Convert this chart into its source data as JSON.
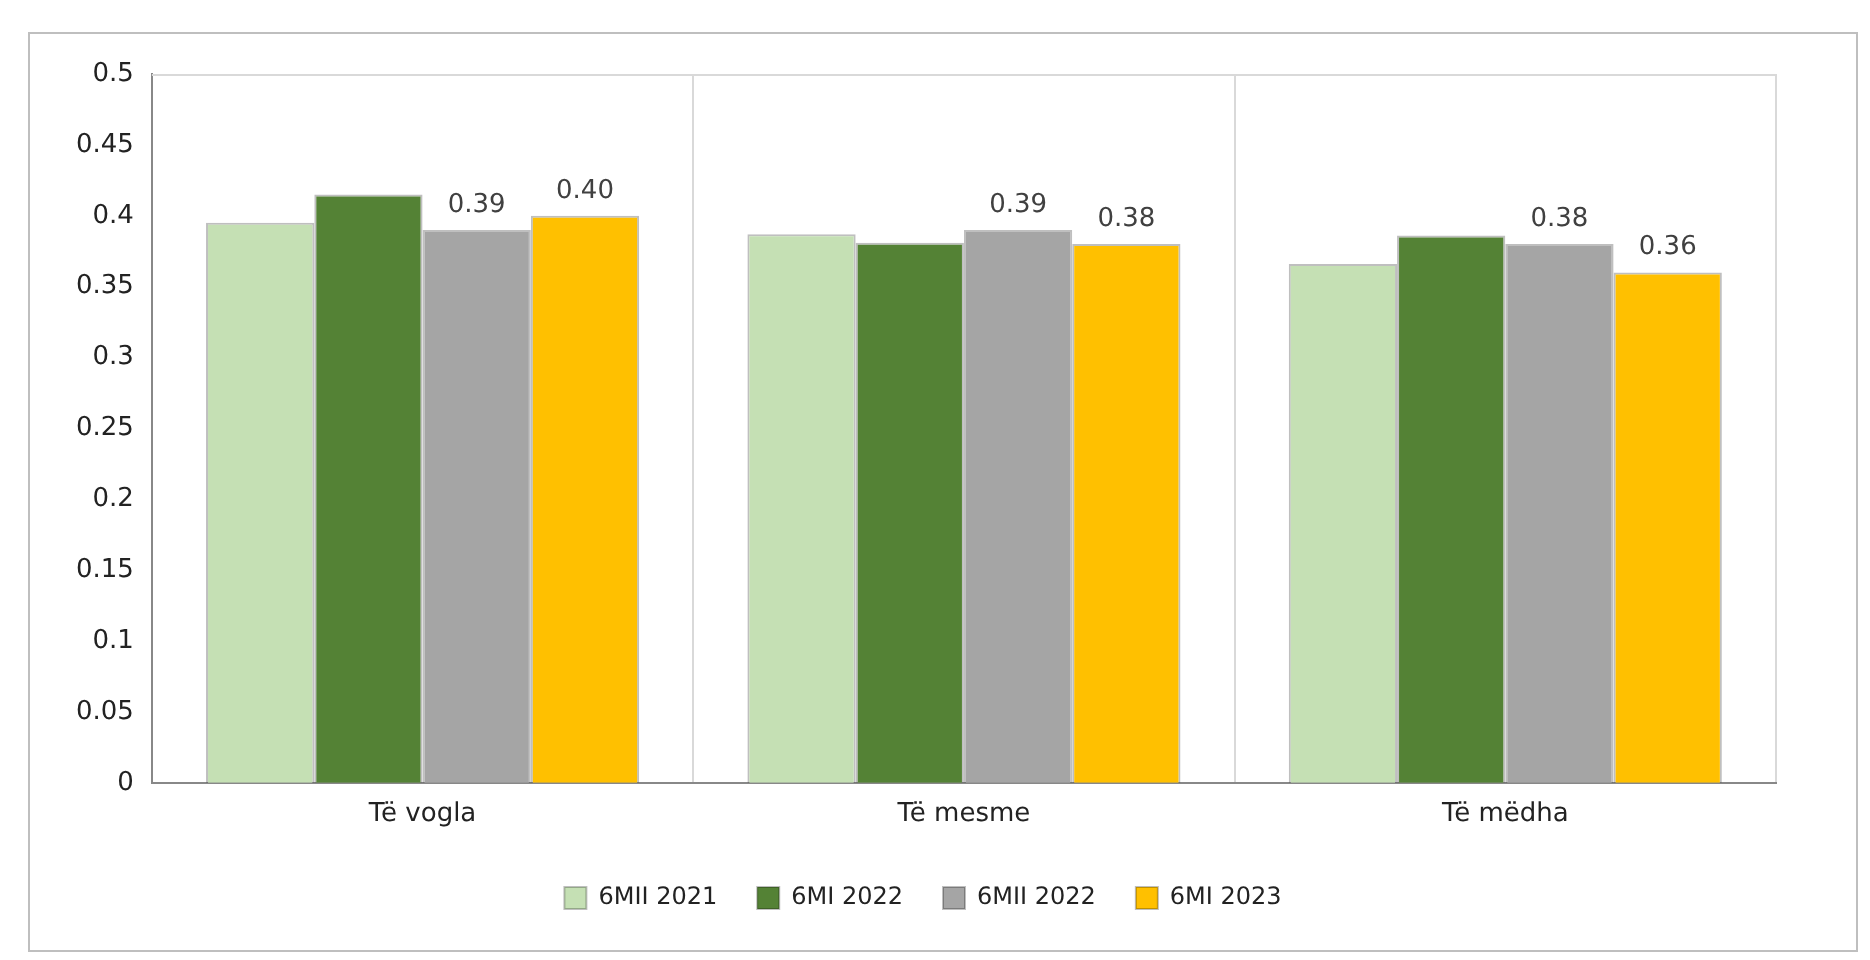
{
  "chart_data": {
    "type": "bar",
    "categories": [
      "Të vogla",
      "Të mesme",
      "Të mëdha"
    ],
    "series": [
      {
        "name": "6MII 2021",
        "color": "#c5e0b4",
        "values": [
          0.395,
          0.387,
          0.366
        ]
      },
      {
        "name": "6MI 2022",
        "color": "#548235",
        "values": [
          0.415,
          0.381,
          0.386
        ]
      },
      {
        "name": "6MII 2022",
        "color": "#a5a5a5",
        "values": [
          0.39,
          0.39,
          0.38
        ],
        "value_labels": [
          "0.39",
          "0.39",
          "0.38"
        ]
      },
      {
        "name": "6MI 2023",
        "color": "#ffc000",
        "values": [
          0.4,
          0.38,
          0.36
        ],
        "value_labels": [
          "0.40",
          "0.38",
          "0.36"
        ]
      }
    ],
    "ylim": [
      0,
      0.5
    ],
    "yticks": [
      0,
      0.05,
      0.1,
      0.15,
      0.2,
      0.25,
      0.3,
      0.35,
      0.4,
      0.45,
      0.5
    ],
    "grid": "x",
    "legend": "bottom"
  }
}
